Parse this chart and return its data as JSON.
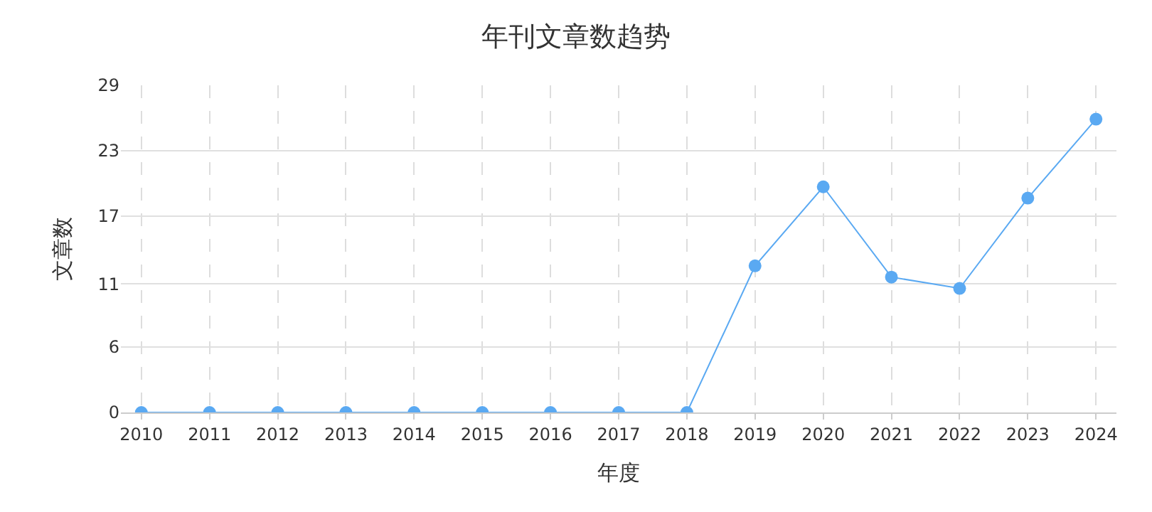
{
  "chart_data": {
    "type": "line",
    "title": "年刊文章数趋势",
    "xlabel": "年度",
    "ylabel": "文章数",
    "categories": [
      "2010",
      "2011",
      "2012",
      "2013",
      "2014",
      "2015",
      "2016",
      "2017",
      "2018",
      "2019",
      "2020",
      "2021",
      "2022",
      "2023",
      "2024"
    ],
    "series": [
      {
        "color": "#5aa9f2",
        "values": [
          0,
          0,
          0,
          0,
          0,
          0,
          0,
          0,
          0,
          13,
          20,
          12,
          11,
          19,
          26
        ]
      }
    ],
    "ylim": [
      0,
      29
    ],
    "yticks": [
      0,
      {
        "value": 5.8,
        "label": "6"
      },
      {
        "value": 11.4,
        "label": "11"
      },
      {
        "value": 17.4,
        "label": "17"
      },
      {
        "value": 23.2,
        "label": "23"
      },
      29
    ],
    "grid": true,
    "legend": false,
    "marker": "circle",
    "line_style": "solid"
  }
}
